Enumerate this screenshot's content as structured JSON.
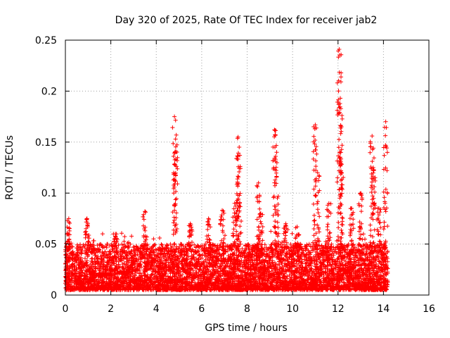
{
  "chart_data": {
    "type": "scatter",
    "title": "Day 320 of 2025, Rate Of TEC Index for receiver jab2",
    "xlabel": "GPS time / hours",
    "ylabel": "ROTI / TECUs",
    "xlim": [
      0,
      16
    ],
    "ylim": [
      0,
      0.25
    ],
    "xticks": [
      "0",
      "2",
      "4",
      "6",
      "8",
      "10",
      "12",
      "14",
      "16"
    ],
    "xtick_values": [
      0,
      2,
      4,
      6,
      8,
      10,
      12,
      14,
      16
    ],
    "yticks": [
      "0",
      "0.05",
      "0.1",
      "0.15",
      "0.2",
      "0.25"
    ],
    "ytick_values": [
      0,
      0.05,
      0.1,
      0.15,
      0.2,
      0.25
    ],
    "grid": true,
    "marker": "+",
    "series": [
      {
        "name": "ROTI",
        "color": "#ff0000",
        "time_range_hours": [
          0,
          14.2
        ],
        "baseline_range": [
          0.005,
          0.05
        ],
        "spikes": [
          {
            "x": 0.15,
            "y": 0.075
          },
          {
            "x": 0.95,
            "y": 0.075
          },
          {
            "x": 2.2,
            "y": 0.06
          },
          {
            "x": 3.5,
            "y": 0.082
          },
          {
            "x": 4.8,
            "y": 0.175
          },
          {
            "x": 4.85,
            "y": 0.153
          },
          {
            "x": 5.5,
            "y": 0.07
          },
          {
            "x": 6.3,
            "y": 0.075
          },
          {
            "x": 6.9,
            "y": 0.083
          },
          {
            "x": 7.45,
            "y": 0.09
          },
          {
            "x": 7.6,
            "y": 0.155
          },
          {
            "x": 7.65,
            "y": 0.145
          },
          {
            "x": 8.5,
            "y": 0.11
          },
          {
            "x": 8.6,
            "y": 0.08
          },
          {
            "x": 9.2,
            "y": 0.162
          },
          {
            "x": 9.3,
            "y": 0.14
          },
          {
            "x": 9.7,
            "y": 0.07
          },
          {
            "x": 10.2,
            "y": 0.067
          },
          {
            "x": 11.0,
            "y": 0.167
          },
          {
            "x": 11.1,
            "y": 0.12
          },
          {
            "x": 11.6,
            "y": 0.09
          },
          {
            "x": 12.05,
            "y": 0.241
          },
          {
            "x": 12.1,
            "y": 0.193
          },
          {
            "x": 12.15,
            "y": 0.165
          },
          {
            "x": 12.6,
            "y": 0.085
          },
          {
            "x": 13.0,
            "y": 0.1
          },
          {
            "x": 13.5,
            "y": 0.156
          },
          {
            "x": 13.55,
            "y": 0.125
          },
          {
            "x": 13.8,
            "y": 0.085
          },
          {
            "x": 14.1,
            "y": 0.17
          }
        ]
      }
    ]
  }
}
